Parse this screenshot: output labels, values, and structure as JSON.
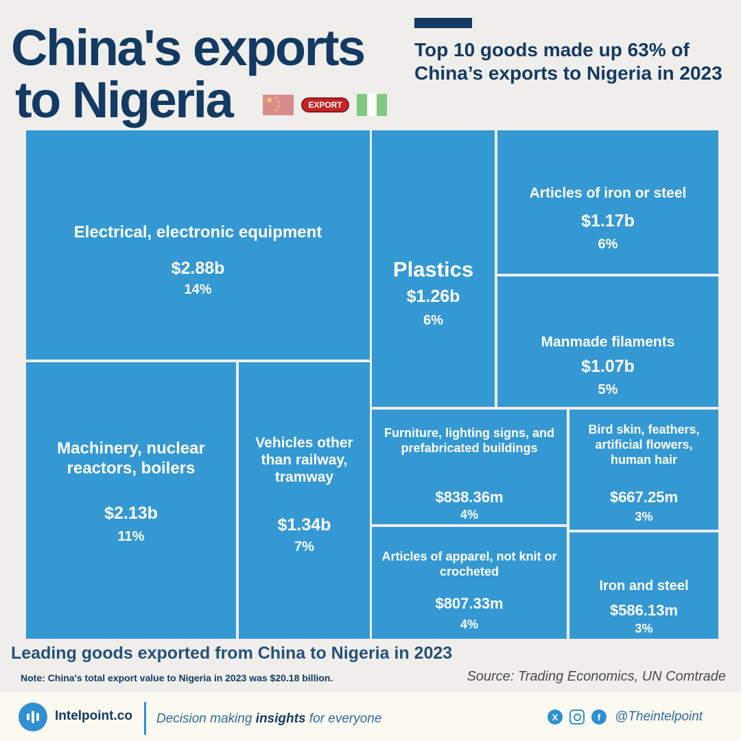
{
  "header": {
    "title_line1": "China's exports",
    "title_line2": "to Nigeria",
    "subtitle": "Top 10 goods made up 63% of China’s exports to Nigeria in 2023",
    "badge_text": "EXPORT"
  },
  "colors": {
    "navy": "#123a63",
    "tile_blue": "#3498d2",
    "background": "#f0eeeb",
    "nigeria_green": "#7fc87c",
    "china_red": "#d88c8c",
    "badge_red": "#c52524"
  },
  "chart_data": {
    "type": "treemap",
    "title": "Leading goods exported from China to Nigeria in 2023",
    "total_label": "China's total export value to Nigeria in 2023 was $20.18 billion.",
    "items": [
      {
        "label": "Electrical, electronic equipment",
        "value": 2.88,
        "value_label": "$2.88b",
        "share": 14,
        "share_label": "14%"
      },
      {
        "label": "Machinery, nuclear reactors, boilers",
        "value": 2.13,
        "value_label": "$2.13b",
        "share": 11,
        "share_label": "11%"
      },
      {
        "label": "Vehicles other than railway, tramway",
        "value": 1.34,
        "value_label": "$1.34b",
        "share": 7,
        "share_label": "7%"
      },
      {
        "label": "Plastics",
        "value": 1.26,
        "value_label": "$1.26b",
        "share": 6,
        "share_label": "6%"
      },
      {
        "label": "Articles of iron or steel",
        "value": 1.17,
        "value_label": "$1.17b",
        "share": 6,
        "share_label": "6%"
      },
      {
        "label": "Manmade filaments",
        "value": 1.07,
        "value_label": "$1.07b",
        "share": 5,
        "share_label": "5%"
      },
      {
        "label": "Furniture, lighting signs, and prefabricated buildings",
        "value": 0.83836,
        "value_label": "$838.36m",
        "share": 4,
        "share_label": "4%"
      },
      {
        "label": "Articles of apparel, not knit or crocheted",
        "value": 0.80733,
        "value_label": "$807.33m",
        "share": 4,
        "share_label": "4%"
      },
      {
        "label": "Bird skin, feathers, artificial flowers, human hair",
        "value": 0.66725,
        "value_label": "$667.25m",
        "share": 3,
        "share_label": "3%"
      },
      {
        "label": "Iron and steel",
        "value": 0.58613,
        "value_label": "$586.13m",
        "share": 3,
        "share_label": "3%"
      }
    ]
  },
  "footer": {
    "caption": "Leading goods exported from China to Nigeria in 2023",
    "note": "Note: China's total export value to Nigeria in 2023 was $20.18 billion.",
    "source": "Source: Trading Economics, UN Comtrade",
    "brand": "Intelpoint.co",
    "tagline_pre": "Decision making ",
    "tagline_bold": "insights",
    "tagline_post": " for everyone",
    "handle": "@Theintelpoint",
    "social_icons": [
      "x-icon",
      "instagram-icon",
      "facebook-icon"
    ]
  }
}
